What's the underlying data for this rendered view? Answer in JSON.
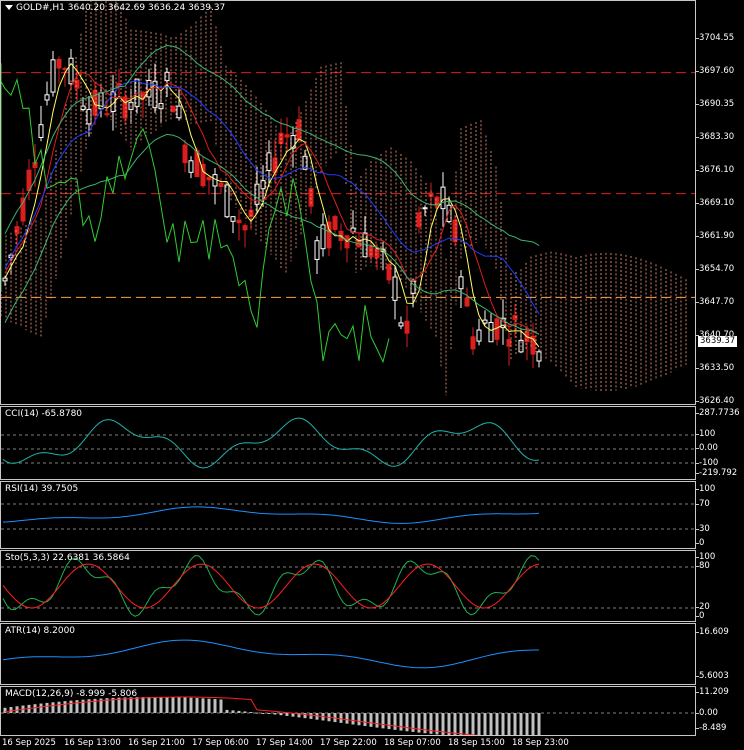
{
  "main": {
    "symbol": "GOLD#,H1",
    "open": "3640.20",
    "high": "3642.69",
    "low": "3636.24",
    "close": "3639.37",
    "current_price": "3639.37",
    "y_ticks": [
      "3704.55",
      "3697.60",
      "3690.35",
      "3683.30",
      "3676.10",
      "3669.10",
      "3661.90",
      "3654.70",
      "3647.70",
      "3640.70",
      "3633.50",
      "3626.40"
    ],
    "ylim": [
      3626.4,
      3708.0
    ],
    "hlines": [
      {
        "value": 3693.5,
        "color": "#dc1e1e"
      },
      {
        "value": 3669.0,
        "color": "#dc1e1e"
      },
      {
        "value": 3648.0,
        "color": "#ffa040"
      }
    ]
  },
  "cci": {
    "label": "CCI(14) -65.8780",
    "y_ticks": [
      "287.7736",
      "100",
      "0.00",
      "-100",
      "-219.792"
    ],
    "colors": {
      "line": "#20b2aa"
    }
  },
  "rsi": {
    "label": "RSI(14) 39.7505",
    "y_ticks": [
      "100",
      "70",
      "30",
      "0"
    ],
    "colors": {
      "line": "#1e90ff"
    }
  },
  "stoch": {
    "label": "Sto(5,3,3) 22.6381 36.5864",
    "y_ticks": [
      "100",
      "80",
      "20",
      "0"
    ],
    "colors": {
      "main": "#20b050",
      "signal": "#ff2020"
    }
  },
  "atr": {
    "label": "ATR(14) 8.2000",
    "y_ticks": [
      "16.609",
      "5.6003"
    ],
    "colors": {
      "line": "#1e90ff"
    }
  },
  "macd": {
    "label": "MACD(12,26,9) -8.999 -5.806",
    "y_ticks": [
      "11.209",
      "0.00",
      "-8.489"
    ],
    "colors": {
      "hist": "#c0c0c0",
      "signal": "#ff2020"
    }
  },
  "x_ticks": [
    "16 Sep 2025",
    "16 Sep 13:00",
    "16 Sep 21:00",
    "17 Sep 06:00",
    "17 Sep 14:00",
    "17 Sep 22:00",
    "18 Sep 07:00",
    "18 Sep 15:00",
    "18 Sep 23:00"
  ],
  "colors": {
    "bull": "#ffffff",
    "bear": "#dc1e1e",
    "kumo": "#ffa07a",
    "tenkan": "#dc1e1e",
    "kijun": "#1e3cff",
    "chikou": "#32cd32",
    "bollinger": "#3cb371",
    "ma": "#ffff66"
  }
}
